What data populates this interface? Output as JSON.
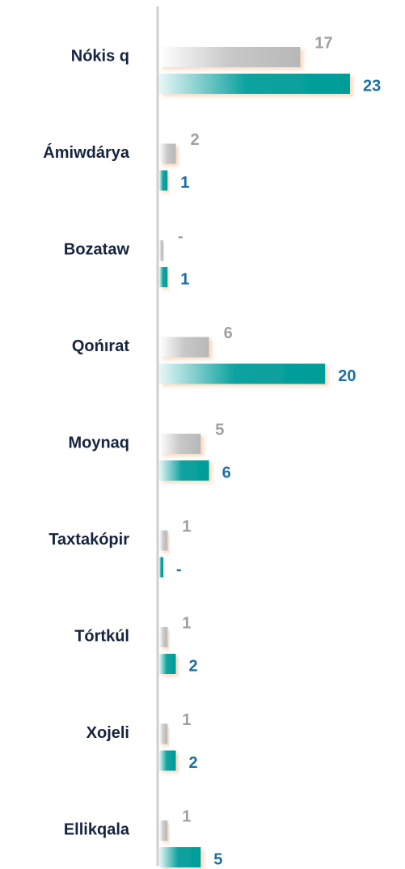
{
  "chart_data": {
    "type": "bar",
    "orientation": "horizontal",
    "categories": [
      "Nókis q",
      "Ámiwdárya",
      "Bozataw",
      "Qońırat",
      "Moynaq",
      "Taxtakópir",
      "Tórtkúl",
      "Xojeli",
      "Ellikqala"
    ],
    "series": [
      {
        "color": "#b8b8b8",
        "values": [
          17,
          2,
          0,
          6,
          5,
          1,
          1,
          1,
          1
        ],
        "value_labels": [
          "17",
          "2",
          "-",
          "6",
          "5",
          "1",
          "1",
          "1",
          "1"
        ],
        "label_color": "#a0a0a0"
      },
      {
        "color": "#009c98",
        "values": [
          23,
          1,
          1,
          20,
          6,
          0,
          2,
          2,
          5
        ],
        "value_labels": [
          "23",
          "1",
          "1",
          "20",
          "6",
          "-",
          "2",
          "2",
          "5"
        ],
        "label_color": "#1b6fa3"
      }
    ],
    "xlim": [
      0,
      23
    ]
  }
}
